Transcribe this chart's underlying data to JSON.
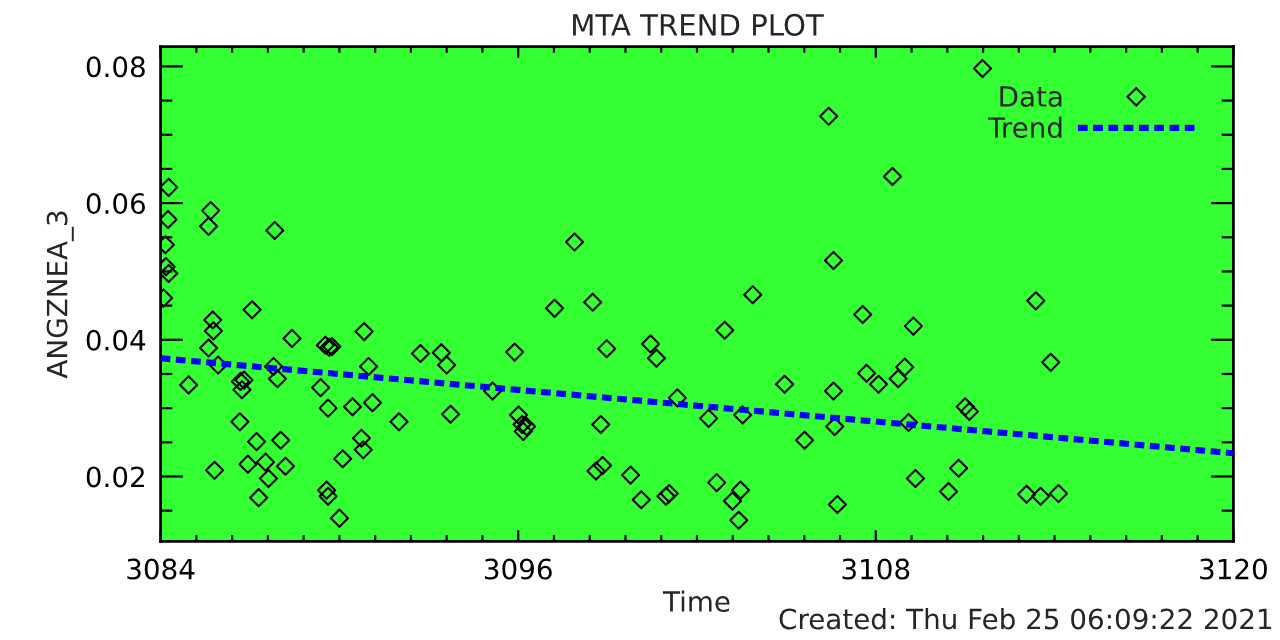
{
  "chart_data": {
    "type": "scatter",
    "title": "MTA TREND PLOT",
    "xlabel": "Time",
    "ylabel": "ANGZNEA_3",
    "annotations": [
      "Created: Thu Feb 25 06:09:22 2021"
    ],
    "xlim": [
      3084,
      3120
    ],
    "ylim": [
      0.0105,
      0.0829
    ],
    "xticks": [
      3084,
      {
        "value": 3085.2,
        "label": null
      },
      {
        "value": 3086.4,
        "label": null
      },
      {
        "value": 3087.6,
        "label": null
      },
      {
        "value": 3088.8,
        "label": null
      },
      {
        "value": 3090,
        "label": null
      },
      {
        "value": 3091.2,
        "label": null
      },
      {
        "value": 3092.4,
        "label": null
      },
      {
        "value": 3093.6,
        "label": null
      },
      {
        "value": 3094.8,
        "label": null
      },
      3096,
      {
        "value": 3097.2,
        "label": null
      },
      {
        "value": 3098.4,
        "label": null
      },
      {
        "value": 3099.6,
        "label": null
      },
      {
        "value": 3100.8,
        "label": null
      },
      {
        "value": 3102,
        "label": null
      },
      {
        "value": 3103.2,
        "label": null
      },
      {
        "value": 3104.4,
        "label": null
      },
      {
        "value": 3105.6,
        "label": null
      },
      {
        "value": 3106.8,
        "label": null
      },
      3108,
      {
        "value": 3109.2,
        "label": null
      },
      {
        "value": 3110.4,
        "label": null
      },
      {
        "value": 3111.6,
        "label": null
      },
      {
        "value": 3112.8,
        "label": null
      },
      {
        "value": 3114,
        "label": null
      },
      {
        "value": 3115.2,
        "label": null
      },
      {
        "value": 3116.4,
        "label": null
      },
      {
        "value": 3117.6,
        "label": null
      },
      {
        "value": 3118.8,
        "label": null
      },
      3120
    ],
    "yticks": [
      {
        "value": 0.015,
        "label": null
      },
      0.02,
      {
        "value": 0.025,
        "label": null
      },
      {
        "value": 0.03,
        "label": null
      },
      {
        "value": 0.035,
        "label": null
      },
      0.04,
      {
        "value": 0.045,
        "label": null
      },
      {
        "value": 0.05,
        "label": null
      },
      {
        "value": 0.055,
        "label": null
      },
      0.06,
      {
        "value": 0.065,
        "label": null
      },
      {
        "value": 0.07,
        "label": null
      },
      {
        "value": 0.075,
        "label": null
      },
      0.08
    ],
    "legend": "top right",
    "series": [
      {
        "name": "Data",
        "marker": "diamond",
        "color": "#000000",
        "x": [
          3084.27,
          3084.25,
          3084.16,
          3084.18,
          3084.27,
          3084.1,
          3084.94,
          3085.68,
          3085.61,
          3085.75,
          3085.77,
          3085.61,
          3085.93,
          3085.81,
          3087.07,
          3086.68,
          3086.8,
          3086.73,
          3086.66,
          3087.22,
          3086.93,
          3087.52,
          3087.29,
          3087.62,
          3087.83,
          3087.79,
          3087.92,
          3088.03,
          3088.19,
          3088.41,
          3089.37,
          3089.62,
          3089.53,
          3089.66,
          3089.75,
          3089.57,
          3089.62,
          3090.0,
          3090.11,
          3090.44,
          3090.83,
          3090.98,
          3091.11,
          3090.74,
          3090.8,
          3092.0,
          3092.72,
          3093.42,
          3093.6,
          3093.73,
          3095.14,
          3095.88,
          3096.01,
          3096.13,
          3096.28,
          3096.17,
          3097.22,
          3097.89,
          3098.5,
          3098.97,
          3098.77,
          3098.61,
          3098.83,
          3099.77,
          3100.13,
          3100.44,
          3100.64,
          3100.96,
          3101.07,
          3101.34,
          3102.39,
          3102.93,
          3103.87,
          3102.66,
          3103.19,
          3103.46,
          3103.4,
          3103.53,
          3104.94,
          3105.61,
          3106.42,
          3106.58,
          3106.58,
          3106.62,
          3106.71,
          3107.56,
          3107.69,
          3108.09,
          3108.56,
          3108.75,
          3108.97,
          3109.26,
          3109.1,
          3109.33,
          3110.44,
          3110.78,
          3111.0,
          3111.14,
          3111.58,
          3113.06,
          3113.53,
          3114.13,
          3113.37,
          3113.87
        ],
        "values": [
          0.0623,
          0.0576,
          0.0539,
          0.0507,
          0.0497,
          0.0461,
          0.0334,
          0.0589,
          0.0566,
          0.0429,
          0.0413,
          0.0388,
          0.0363,
          0.0209,
          0.0444,
          0.0339,
          0.0341,
          0.0327,
          0.028,
          0.0251,
          0.0218,
          0.0221,
          0.0169,
          0.0197,
          0.056,
          0.0361,
          0.0343,
          0.0253,
          0.0215,
          0.0402,
          0.033,
          0.03,
          0.0392,
          0.0389,
          0.039,
          0.018,
          0.0171,
          0.0139,
          0.0226,
          0.0302,
          0.0412,
          0.0361,
          0.0308,
          0.0256,
          0.0239,
          0.028,
          0.038,
          0.0381,
          0.0363,
          0.0291,
          0.0325,
          0.0382,
          0.029,
          0.0276,
          0.0273,
          0.0266,
          0.0446,
          0.0543,
          0.0455,
          0.0387,
          0.0276,
          0.0208,
          0.0216,
          0.0202,
          0.0166,
          0.0394,
          0.0373,
          0.0171,
          0.0175,
          0.0315,
          0.0285,
          0.0414,
          0.0466,
          0.0191,
          0.0164,
          0.018,
          0.0136,
          0.029,
          0.0335,
          0.0253,
          0.0727,
          0.0516,
          0.0325,
          0.0273,
          0.0159,
          0.0437,
          0.0351,
          0.0335,
          0.0639,
          0.0343,
          0.036,
          0.042,
          0.0279,
          0.0197,
          0.0178,
          0.0212,
          0.0302,
          0.0295,
          0.0797,
          0.0174,
          0.0171,
          0.0175,
          0.0457,
          0.0367
        ]
      },
      {
        "name": "Trend",
        "type": "line",
        "color": "#0000ff",
        "line_style": "dashed",
        "x": [
          3084,
          3120
        ],
        "values": [
          0.0373,
          0.0234
        ]
      }
    ]
  }
}
